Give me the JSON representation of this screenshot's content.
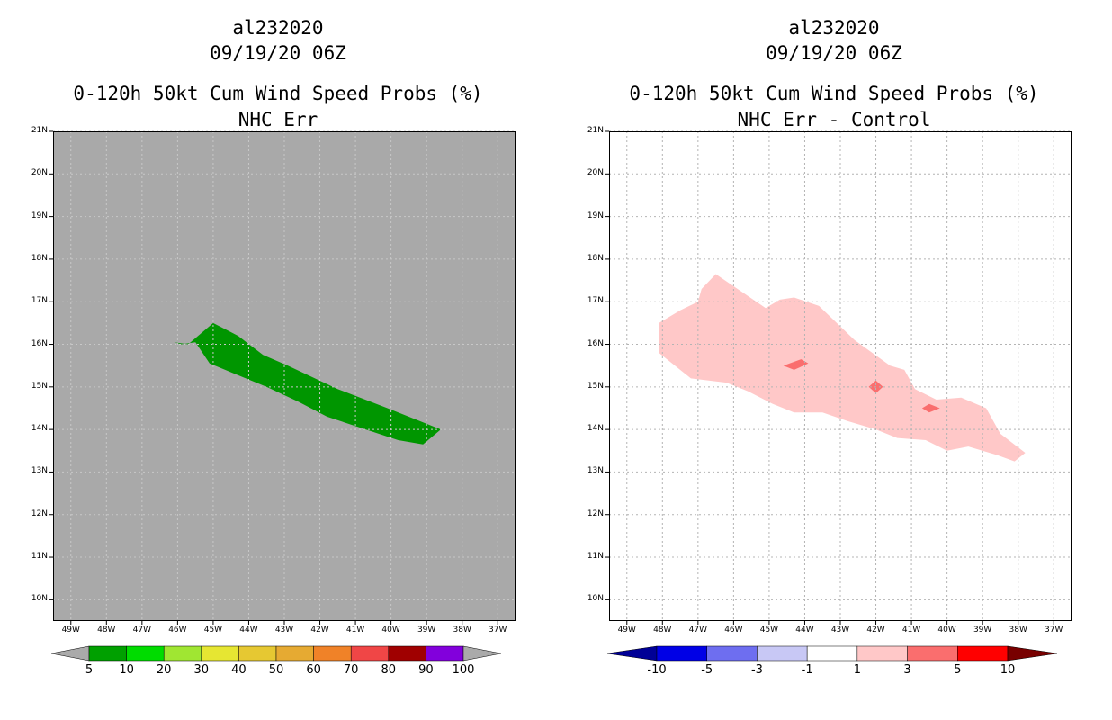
{
  "chart_data": [
    {
      "type": "heatmap",
      "storm_id": "al232020",
      "datetime": "09/19/20 06Z",
      "title": "0-120h 50kt Cum Wind Speed Probs (%)",
      "subtitle": "NHC Err",
      "yticks": [
        "21N",
        "20N",
        "19N",
        "18N",
        "17N",
        "16N",
        "15N",
        "14N",
        "13N",
        "12N",
        "11N",
        "10N"
      ],
      "xticks": [
        "49W",
        "48W",
        "47W",
        "46W",
        "45W",
        "44W",
        "43W",
        "42W",
        "41W",
        "40W",
        "39W",
        "38W",
        "37W"
      ],
      "xlim": [
        -49.5,
        -36.5
      ],
      "ylim": [
        9.5,
        21.0
      ],
      "background_color": "#a9a9a9",
      "grid": true,
      "colorbar": {
        "labels": [
          "5",
          "10",
          "20",
          "30",
          "40",
          "50",
          "60",
          "70",
          "80",
          "90",
          "100"
        ],
        "colors": [
          "#00a000",
          "#00dc00",
          "#a0e632",
          "#e6e632",
          "#e6c832",
          "#e6aa32",
          "#f08228",
          "#f04646",
          "#a00000",
          "#8200dc"
        ],
        "extend_color": "#aaaaaa"
      },
      "regions": [
        {
          "level": "5-10",
          "color": "#009600",
          "polygon": [
            [
              -46.1,
              16.05
            ],
            [
              -45.7,
              16.0
            ],
            [
              -45.0,
              16.5
            ],
            [
              -44.3,
              16.2
            ],
            [
              -43.6,
              15.75
            ],
            [
              -42.9,
              15.5
            ],
            [
              -41.5,
              14.95
            ],
            [
              -40.1,
              14.5
            ],
            [
              -38.6,
              14.0
            ],
            [
              -39.1,
              13.65
            ],
            [
              -39.8,
              13.75
            ],
            [
              -41.8,
              14.3
            ],
            [
              -42.6,
              14.65
            ],
            [
              -43.5,
              15.0
            ],
            [
              -45.1,
              15.55
            ],
            [
              -45.5,
              16.05
            ],
            [
              -45.9,
              16.0
            ]
          ]
        }
      ]
    },
    {
      "type": "heatmap",
      "storm_id": "al232020",
      "datetime": "09/19/20 06Z",
      "title": "0-120h 50kt Cum Wind Speed Probs (%)",
      "subtitle": "NHC Err - Control",
      "yticks": [
        "21N",
        "20N",
        "19N",
        "18N",
        "17N",
        "16N",
        "15N",
        "14N",
        "13N",
        "12N",
        "11N",
        "10N"
      ],
      "xticks": [
        "49W",
        "48W",
        "47W",
        "46W",
        "45W",
        "44W",
        "43W",
        "42W",
        "41W",
        "40W",
        "39W",
        "38W",
        "37W"
      ],
      "xlim": [
        -49.5,
        -36.5
      ],
      "ylim": [
        9.5,
        21.0
      ],
      "background_color": "#ffffff",
      "grid": true,
      "colorbar": {
        "labels": [
          "-10",
          "-5",
          "-3",
          "-1",
          "1",
          "3",
          "5",
          "10"
        ],
        "colors": [
          "#0000e6",
          "#6e6ef0",
          "#c8c8f5",
          "#ffffff",
          "#ffc8c8",
          "#fa6e6e",
          "#ff0000"
        ],
        "left_extend_color": "#000096",
        "right_extend_color": "#780000"
      },
      "regions": [
        {
          "level": "1-3",
          "color": "#ffc8c8",
          "polygon": [
            [
              -48.1,
              16.5
            ],
            [
              -47.5,
              16.8
            ],
            [
              -47.0,
              17.0
            ],
            [
              -46.9,
              17.3
            ],
            [
              -46.5,
              17.65
            ],
            [
              -45.8,
              17.25
            ],
            [
              -45.1,
              16.85
            ],
            [
              -44.7,
              17.05
            ],
            [
              -44.3,
              17.1
            ],
            [
              -43.6,
              16.9
            ],
            [
              -42.6,
              16.1
            ],
            [
              -41.6,
              15.5
            ],
            [
              -41.2,
              15.4
            ],
            [
              -40.9,
              14.95
            ],
            [
              -40.3,
              14.7
            ],
            [
              -39.6,
              14.75
            ],
            [
              -38.9,
              14.5
            ],
            [
              -38.5,
              13.9
            ],
            [
              -37.8,
              13.45
            ],
            [
              -38.1,
              13.25
            ],
            [
              -38.6,
              13.4
            ],
            [
              -39.4,
              13.6
            ],
            [
              -40.0,
              13.5
            ],
            [
              -40.6,
              13.75
            ],
            [
              -41.4,
              13.8
            ],
            [
              -42.0,
              14.0
            ],
            [
              -42.8,
              14.2
            ],
            [
              -43.5,
              14.4
            ],
            [
              -44.3,
              14.4
            ],
            [
              -44.9,
              14.6
            ],
            [
              -45.6,
              14.9
            ],
            [
              -46.2,
              15.1
            ],
            [
              -47.2,
              15.2
            ],
            [
              -48.1,
              15.8
            ]
          ]
        },
        {
          "level": "3-5",
          "color": "#fa6e6e",
          "polygon": [
            [
              -44.6,
              15.5
            ],
            [
              -44.1,
              15.65
            ],
            [
              -43.9,
              15.55
            ],
            [
              -44.3,
              15.4
            ]
          ]
        },
        {
          "level": "3-5",
          "color": "#fa6e6e",
          "polygon": [
            [
              -42.2,
              15.0
            ],
            [
              -42.0,
              15.15
            ],
            [
              -41.8,
              15.0
            ],
            [
              -42.0,
              14.85
            ]
          ]
        },
        {
          "level": "3-5",
          "color": "#fa6e6e",
          "polygon": [
            [
              -40.7,
              14.5
            ],
            [
              -40.5,
              14.6
            ],
            [
              -40.2,
              14.5
            ],
            [
              -40.5,
              14.4
            ]
          ]
        }
      ]
    }
  ]
}
